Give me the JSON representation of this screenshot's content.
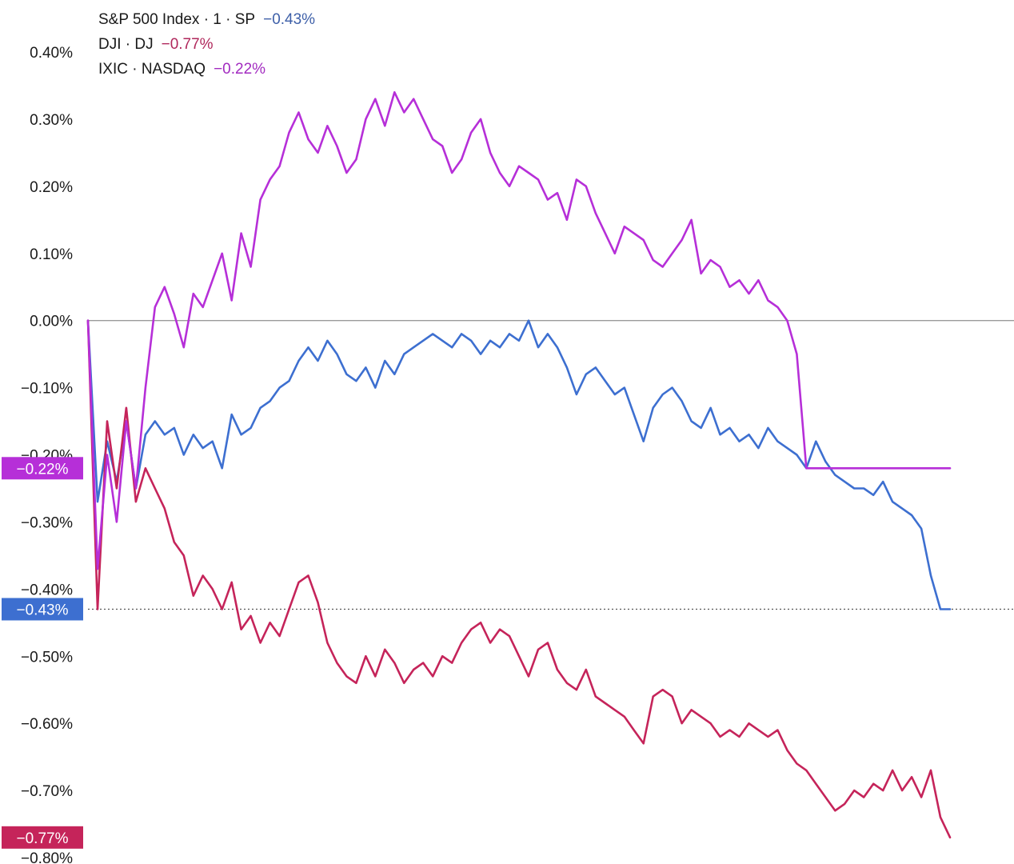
{
  "colors": {
    "sp": "#3d6fd0",
    "dj": "#c5245a",
    "nasdaq": "#b62fd8",
    "zero_line": "#9a9a9a",
    "background": "#ffffff"
  },
  "legend": [
    {
      "name": "S&P 500 Index · 1 · SP",
      "value": "−0.43%",
      "color": "#3d5fa8"
    },
    {
      "name": "DJI · DJ",
      "value": "−0.77%",
      "color": "#b0285c"
    },
    {
      "name": "IXIC · NASDAQ",
      "value": "−0.22%",
      "color": "#a22bc0"
    }
  ],
  "chart_data": {
    "type": "line",
    "title": "",
    "xlabel": "",
    "ylabel": "",
    "ylim": [
      -0.8,
      0.4
    ],
    "y_ticks": [
      "0.40%",
      "0.30%",
      "0.20%",
      "0.10%",
      "0.00%",
      "−0.10%",
      "−0.20%",
      "−0.30%",
      "−0.40%",
      "−0.50%",
      "−0.60%",
      "−0.70%",
      "−0.80%"
    ],
    "y_tick_values": [
      0.4,
      0.3,
      0.2,
      0.1,
      0.0,
      -0.1,
      -0.2,
      -0.3,
      -0.4,
      -0.5,
      -0.6,
      -0.7,
      -0.8
    ],
    "grid": false,
    "reference_line": 0.0,
    "x": [
      0,
      1,
      2,
      3,
      4,
      5,
      6,
      7,
      8,
      9,
      10,
      11,
      12,
      13,
      14,
      15,
      16,
      17,
      18,
      19,
      20,
      21,
      22,
      23,
      24,
      25,
      26,
      27,
      28,
      29,
      30,
      31,
      32,
      33,
      34,
      35,
      36,
      37,
      38,
      39,
      40,
      41,
      42,
      43,
      44,
      45,
      46,
      47,
      48,
      49,
      50,
      51,
      52,
      53,
      54,
      55,
      56,
      57,
      58,
      59,
      60,
      61,
      62,
      63,
      64,
      65,
      66,
      67,
      68,
      69,
      70,
      71,
      72,
      73,
      74,
      75,
      76,
      77,
      78,
      79,
      80,
      81,
      82,
      83,
      84,
      85,
      86,
      87,
      88,
      89,
      90
    ],
    "series": [
      {
        "name": "S&P 500 Index",
        "color_key": "sp",
        "badge": "−0.43%",
        "values": [
          0.0,
          -0.27,
          -0.18,
          -0.24,
          -0.15,
          -0.25,
          -0.17,
          -0.15,
          -0.17,
          -0.16,
          -0.2,
          -0.17,
          -0.19,
          -0.18,
          -0.22,
          -0.14,
          -0.17,
          -0.16,
          -0.13,
          -0.12,
          -0.1,
          -0.09,
          -0.06,
          -0.04,
          -0.06,
          -0.03,
          -0.05,
          -0.08,
          -0.09,
          -0.07,
          -0.1,
          -0.06,
          -0.08,
          -0.05,
          -0.04,
          -0.03,
          -0.02,
          -0.03,
          -0.04,
          -0.02,
          -0.03,
          -0.05,
          -0.03,
          -0.04,
          -0.02,
          -0.03,
          0.0,
          -0.04,
          -0.02,
          -0.04,
          -0.07,
          -0.11,
          -0.08,
          -0.07,
          -0.09,
          -0.11,
          -0.1,
          -0.14,
          -0.18,
          -0.13,
          -0.11,
          -0.1,
          -0.12,
          -0.15,
          -0.16,
          -0.13,
          -0.17,
          -0.16,
          -0.18,
          -0.17,
          -0.19,
          -0.16,
          -0.18,
          -0.19,
          -0.2,
          -0.22,
          -0.18,
          -0.21,
          -0.23,
          -0.24,
          -0.25,
          -0.25,
          -0.26,
          -0.24,
          -0.27,
          -0.28,
          -0.29,
          -0.31,
          -0.38,
          -0.43,
          -0.43
        ]
      },
      {
        "name": "DJI",
        "color_key": "dj",
        "badge": "−0.77%",
        "values": [
          0.0,
          -0.43,
          -0.15,
          -0.25,
          -0.13,
          -0.27,
          -0.22,
          -0.25,
          -0.28,
          -0.33,
          -0.35,
          -0.41,
          -0.38,
          -0.4,
          -0.43,
          -0.39,
          -0.46,
          -0.44,
          -0.48,
          -0.45,
          -0.47,
          -0.43,
          -0.39,
          -0.38,
          -0.42,
          -0.48,
          -0.51,
          -0.53,
          -0.54,
          -0.5,
          -0.53,
          -0.49,
          -0.51,
          -0.54,
          -0.52,
          -0.51,
          -0.53,
          -0.5,
          -0.51,
          -0.48,
          -0.46,
          -0.45,
          -0.48,
          -0.46,
          -0.47,
          -0.5,
          -0.53,
          -0.49,
          -0.48,
          -0.52,
          -0.54,
          -0.55,
          -0.52,
          -0.56,
          -0.57,
          -0.58,
          -0.59,
          -0.61,
          -0.63,
          -0.56,
          -0.55,
          -0.56,
          -0.6,
          -0.58,
          -0.59,
          -0.6,
          -0.62,
          -0.61,
          -0.62,
          -0.6,
          -0.61,
          -0.62,
          -0.61,
          -0.64,
          -0.66,
          -0.67,
          -0.69,
          -0.71,
          -0.73,
          -0.72,
          -0.7,
          -0.71,
          -0.69,
          -0.7,
          -0.67,
          -0.7,
          -0.68,
          -0.71,
          -0.67,
          -0.74,
          -0.77
        ]
      },
      {
        "name": "IXIC",
        "color_key": "nasdaq",
        "badge": "−0.22%",
        "values": [
          0.0,
          -0.37,
          -0.2,
          -0.3,
          -0.15,
          -0.25,
          -0.1,
          0.02,
          0.05,
          0.01,
          -0.04,
          0.04,
          0.02,
          0.06,
          0.1,
          0.03,
          0.13,
          0.08,
          0.18,
          0.21,
          0.23,
          0.28,
          0.31,
          0.27,
          0.25,
          0.29,
          0.26,
          0.22,
          0.24,
          0.3,
          0.33,
          0.29,
          0.34,
          0.31,
          0.33,
          0.3,
          0.27,
          0.26,
          0.22,
          0.24,
          0.28,
          0.3,
          0.25,
          0.22,
          0.2,
          0.23,
          0.22,
          0.21,
          0.18,
          0.19,
          0.15,
          0.21,
          0.2,
          0.16,
          0.13,
          0.1,
          0.14,
          0.13,
          0.12,
          0.09,
          0.08,
          0.1,
          0.12,
          0.15,
          0.07,
          0.09,
          0.08,
          0.05,
          0.06,
          0.04,
          0.06,
          0.03,
          0.02,
          0.0,
          -0.05,
          -0.22,
          -0.22,
          -0.22,
          -0.22,
          -0.22,
          -0.22,
          -0.22,
          -0.22,
          -0.22,
          -0.22,
          -0.22,
          -0.22,
          -0.22,
          -0.22,
          -0.22,
          -0.22
        ]
      }
    ]
  }
}
